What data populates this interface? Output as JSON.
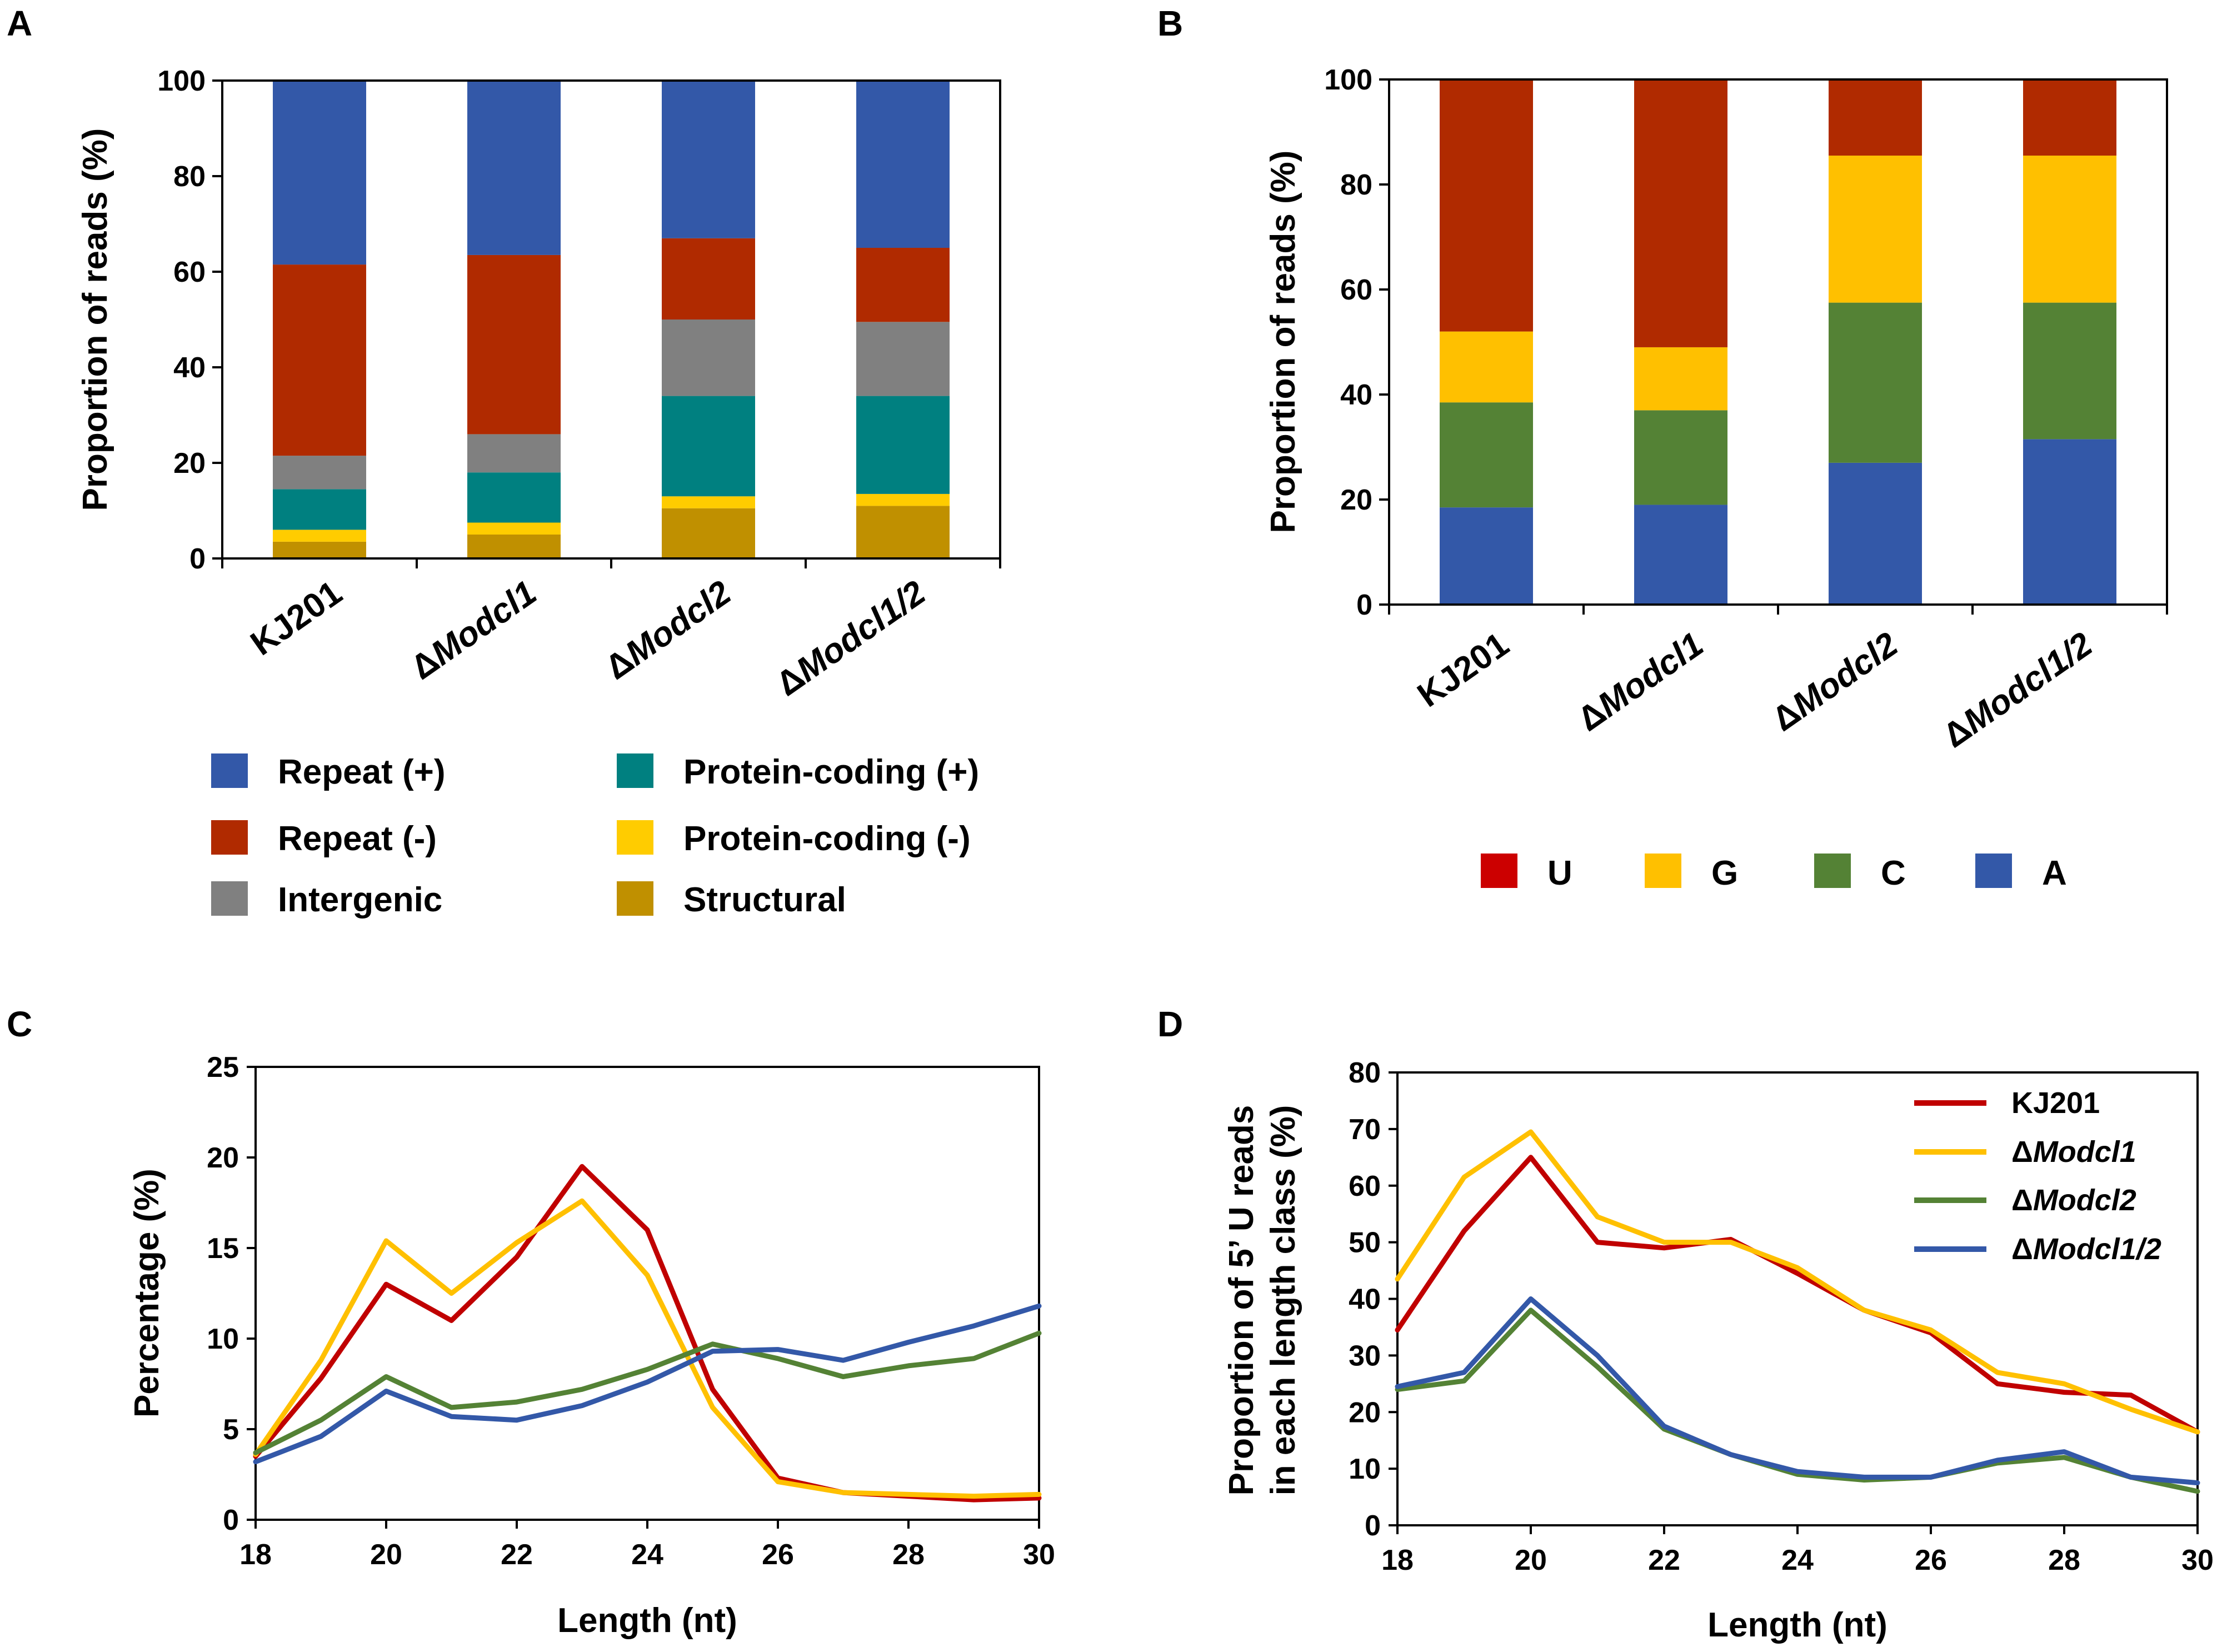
{
  "chart_data": [
    {
      "panel": "A",
      "type": "bar",
      "stacked": true,
      "categories": [
        "KJ201",
        "ΔModcl1",
        "ΔModcl2",
        "ΔModcl1/2"
      ],
      "ylabel": "Proportion of reads (%)",
      "xlabel": "",
      "ylim": [
        0,
        100
      ],
      "yticks": [
        "0",
        "20",
        "40",
        "60",
        "80",
        "100"
      ],
      "legend_position": "bottom",
      "series": [
        {
          "name": "Structural",
          "color": "#C09000",
          "values": [
            3.5,
            5,
            10.5,
            11
          ]
        },
        {
          "name": "Protein-coding (-)",
          "color": "#FFCC00",
          "values": [
            2.5,
            2.5,
            2.5,
            2.5
          ]
        },
        {
          "name": "Protein-coding (+)",
          "color": "#008080",
          "values": [
            8.5,
            10.5,
            21,
            20.5
          ]
        },
        {
          "name": "Intergenic",
          "color": "#808080",
          "values": [
            7,
            8,
            16,
            15.5
          ]
        },
        {
          "name": "Repeat (-)",
          "color": "#B02A00",
          "values": [
            40,
            37.5,
            17,
            15.5
          ]
        },
        {
          "name": "Repeat (+)",
          "color": "#3358A8",
          "values": [
            38.5,
            36.5,
            33,
            35
          ]
        }
      ],
      "legend_order": [
        "Repeat (+)",
        "Protein-coding (+)",
        "Repeat (-)",
        "Protein-coding (-)",
        "Intergenic",
        "Structural"
      ]
    },
    {
      "panel": "B",
      "type": "bar",
      "stacked": true,
      "categories": [
        "KJ201",
        "ΔModcl1",
        "ΔModcl2",
        "ΔModcl1/2"
      ],
      "ylabel": "Proportion of reads (%)",
      "xlabel": "",
      "ylim": [
        0,
        100
      ],
      "yticks": [
        "0",
        "20",
        "40",
        "60",
        "80",
        "100"
      ],
      "legend_position": "bottom",
      "series": [
        {
          "name": "A",
          "color": "#3358A8",
          "values": [
            18.5,
            19,
            27,
            31.5
          ]
        },
        {
          "name": "C",
          "color": "#548235",
          "values": [
            20,
            18,
            30.5,
            26
          ]
        },
        {
          "name": "G",
          "color": "#FFC000",
          "values": [
            13.5,
            12,
            28,
            28
          ]
        },
        {
          "name": "U",
          "color": "#B02A00",
          "values": [
            48,
            51,
            14.5,
            14.5
          ]
        }
      ],
      "legend_order": [
        "U",
        "G",
        "C",
        "A"
      ],
      "legend_colors": {
        "U": "#CC0000",
        "G": "#FFC000",
        "C": "#548235",
        "A": "#3358A8"
      }
    },
    {
      "panel": "C",
      "type": "line",
      "x": [
        18,
        19,
        20,
        21,
        22,
        23,
        24,
        25,
        26,
        27,
        28,
        29,
        30
      ],
      "xlim": [
        18,
        30
      ],
      "xticks": [
        "18",
        "20",
        "22",
        "24",
        "26",
        "28",
        "30"
      ],
      "ylim": [
        0,
        25
      ],
      "yticks": [
        "0",
        "5",
        "10",
        "15",
        "20",
        "25"
      ],
      "xlabel": "Length (nt)",
      "ylabel": "Percentage (%)",
      "series": [
        {
          "name": "KJ201",
          "color": "#C00000",
          "values": [
            3.5,
            7.8,
            13,
            11,
            14.5,
            19.5,
            16,
            7.2,
            2.3,
            1.5,
            1.3,
            1.1,
            1.2
          ]
        },
        {
          "name": "ΔModcl1",
          "color": "#FFC000",
          "values": [
            3.6,
            8.8,
            15.4,
            12.5,
            15.3,
            17.6,
            13.5,
            6.2,
            2.1,
            1.5,
            1.4,
            1.3,
            1.4
          ]
        },
        {
          "name": "ΔModcl2",
          "color": "#548235",
          "values": [
            3.7,
            5.5,
            7.9,
            6.2,
            6.5,
            7.2,
            8.3,
            9.7,
            8.9,
            7.9,
            8.5,
            8.9,
            10.3
          ]
        },
        {
          "name": "ΔModcl1/2",
          "color": "#3358A8",
          "values": [
            3.2,
            4.6,
            7.1,
            5.7,
            5.5,
            6.3,
            7.6,
            9.3,
            9.4,
            8.8,
            9.8,
            10.7,
            11.8
          ]
        }
      ]
    },
    {
      "panel": "D",
      "type": "line",
      "x": [
        18,
        19,
        20,
        21,
        22,
        23,
        24,
        25,
        26,
        27,
        28,
        29,
        30
      ],
      "xlim": [
        18,
        30
      ],
      "xticks": [
        "18",
        "20",
        "22",
        "24",
        "26",
        "28",
        "30"
      ],
      "ylim": [
        0,
        80
      ],
      "yticks": [
        "0",
        "10",
        "20",
        "30",
        "40",
        "50",
        "60",
        "70",
        "80"
      ],
      "xlabel": "Length (nt)",
      "ylabel_line1": "Proportion of 5’ U reads",
      "ylabel_line2": "in each length class (%)",
      "legend_position": "top-right",
      "series": [
        {
          "name": "KJ201",
          "color": "#C00000",
          "values": [
            34.5,
            52,
            65,
            50,
            49,
            50.5,
            44.5,
            38,
            34,
            25,
            23.5,
            23,
            16.5
          ]
        },
        {
          "name": "ΔModcl1",
          "color": "#FFC000",
          "values": [
            43.5,
            61.5,
            69.5,
            54.5,
            50,
            50,
            45.5,
            38,
            34.5,
            27,
            25,
            20.5,
            16.5
          ]
        },
        {
          "name": "ΔModcl2",
          "color": "#548235",
          "values": [
            24,
            25.5,
            38,
            28,
            17,
            12.5,
            9,
            8,
            8.5,
            11,
            12,
            8.5,
            6
          ]
        },
        {
          "name": "ΔModcl1/2",
          "color": "#3358A8",
          "values": [
            24.5,
            27,
            40,
            30,
            17.5,
            12.5,
            9.5,
            8.5,
            8.5,
            11.5,
            13,
            8.5,
            7.5
          ]
        }
      ]
    }
  ]
}
